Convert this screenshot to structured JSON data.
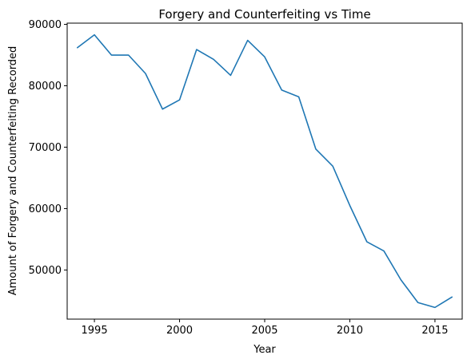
{
  "chart_data": {
    "type": "line",
    "title": "Forgery and Counterfeiting vs Time",
    "xlabel": "Year",
    "ylabel": "Amount of Forgery and Counterfeiting Recorded",
    "xlim": [
      1993.4,
      2016.6
    ],
    "ylim": [
      42000,
      90200
    ],
    "xticks": [
      "1995",
      "2000",
      "2005",
      "2010",
      "2015"
    ],
    "yticks": [
      "50000",
      "60000",
      "70000",
      "80000",
      "90000"
    ],
    "grid": false,
    "line_color": "#1f77b4",
    "series": [
      {
        "x": [
          1994,
          1995,
          1996,
          1997,
          1998,
          1999,
          2000,
          2001,
          2002,
          2003,
          2004,
          2005,
          2006,
          2007,
          2008,
          2009,
          2010,
          2011,
          2012,
          2013,
          2014,
          2015,
          2016
        ],
        "values": [
          86200,
          88300,
          85000,
          85000,
          82000,
          76200,
          77700,
          85900,
          84300,
          81700,
          87400,
          84700,
          79300,
          78200,
          69700,
          66900,
          60500,
          54600,
          53100,
          48400,
          44700,
          43900,
          45600
        ]
      }
    ]
  }
}
